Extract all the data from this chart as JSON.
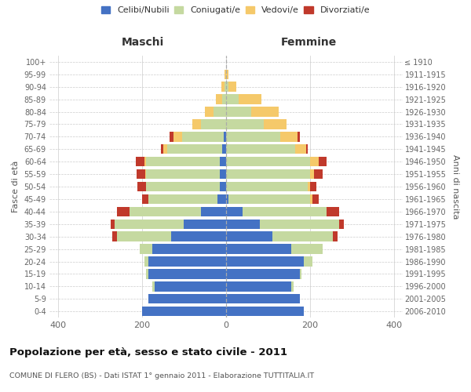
{
  "age_groups": [
    "0-4",
    "5-9",
    "10-14",
    "15-19",
    "20-24",
    "25-29",
    "30-34",
    "35-39",
    "40-44",
    "45-49",
    "50-54",
    "55-59",
    "60-64",
    "65-69",
    "70-74",
    "75-79",
    "80-84",
    "85-89",
    "90-94",
    "95-99",
    "100+"
  ],
  "birth_years": [
    "2006-2010",
    "2001-2005",
    "1996-2000",
    "1991-1995",
    "1986-1990",
    "1981-1985",
    "1976-1980",
    "1971-1975",
    "1966-1970",
    "1961-1965",
    "1956-1960",
    "1951-1955",
    "1946-1950",
    "1941-1945",
    "1936-1940",
    "1931-1935",
    "1926-1930",
    "1921-1925",
    "1916-1920",
    "1911-1915",
    "≤ 1910"
  ],
  "colors": {
    "celibi": "#4472C4",
    "coniugati": "#c5d9a0",
    "vedovi": "#f5c96a",
    "divorziati": "#c0392b"
  },
  "maschi": {
    "celibi": [
      200,
      185,
      170,
      185,
      185,
      175,
      130,
      100,
      60,
      20,
      15,
      15,
      15,
      10,
      5,
      0,
      0,
      0,
      0,
      0,
      0
    ],
    "coniugati": [
      0,
      0,
      5,
      5,
      10,
      30,
      130,
      165,
      170,
      165,
      175,
      175,
      175,
      130,
      100,
      60,
      30,
      10,
      3,
      0,
      0
    ],
    "vedovi": [
      0,
      0,
      0,
      0,
      0,
      0,
      0,
      0,
      0,
      0,
      0,
      3,
      5,
      10,
      20,
      20,
      20,
      15,
      8,
      3,
      0
    ],
    "divorziati": [
      0,
      0,
      0,
      0,
      0,
      0,
      10,
      10,
      30,
      15,
      20,
      20,
      20,
      5,
      10,
      0,
      0,
      0,
      0,
      0,
      0
    ]
  },
  "femmine": {
    "celibi": [
      185,
      175,
      155,
      175,
      185,
      155,
      110,
      80,
      40,
      5,
      0,
      0,
      0,
      0,
      0,
      0,
      0,
      0,
      0,
      0,
      0
    ],
    "coniugati": [
      0,
      0,
      5,
      5,
      20,
      75,
      145,
      190,
      200,
      195,
      195,
      200,
      200,
      165,
      130,
      90,
      60,
      30,
      5,
      0,
      0
    ],
    "vedovi": [
      0,
      0,
      0,
      0,
      0,
      0,
      0,
      0,
      0,
      5,
      5,
      10,
      20,
      25,
      40,
      55,
      65,
      55,
      20,
      5,
      0
    ],
    "divorziati": [
      0,
      0,
      0,
      0,
      0,
      0,
      10,
      10,
      30,
      15,
      15,
      20,
      20,
      5,
      5,
      0,
      0,
      0,
      0,
      0,
      0
    ]
  },
  "title": "Popolazione per età, sesso e stato civile - 2011",
  "subtitle": "COMUNE DI FLERO (BS) - Dati ISTAT 1° gennaio 2011 - Elaborazione TUTTITALIA.IT",
  "xlabel_left": "Maschi",
  "xlabel_right": "Femmine",
  "ylabel_left": "Fasce di età",
  "ylabel_right": "Anni di nascita",
  "legend_labels": [
    "Celibi/Nubili",
    "Coniugati/e",
    "Vedovi/e",
    "Divorziati/e"
  ],
  "xlim": 420
}
